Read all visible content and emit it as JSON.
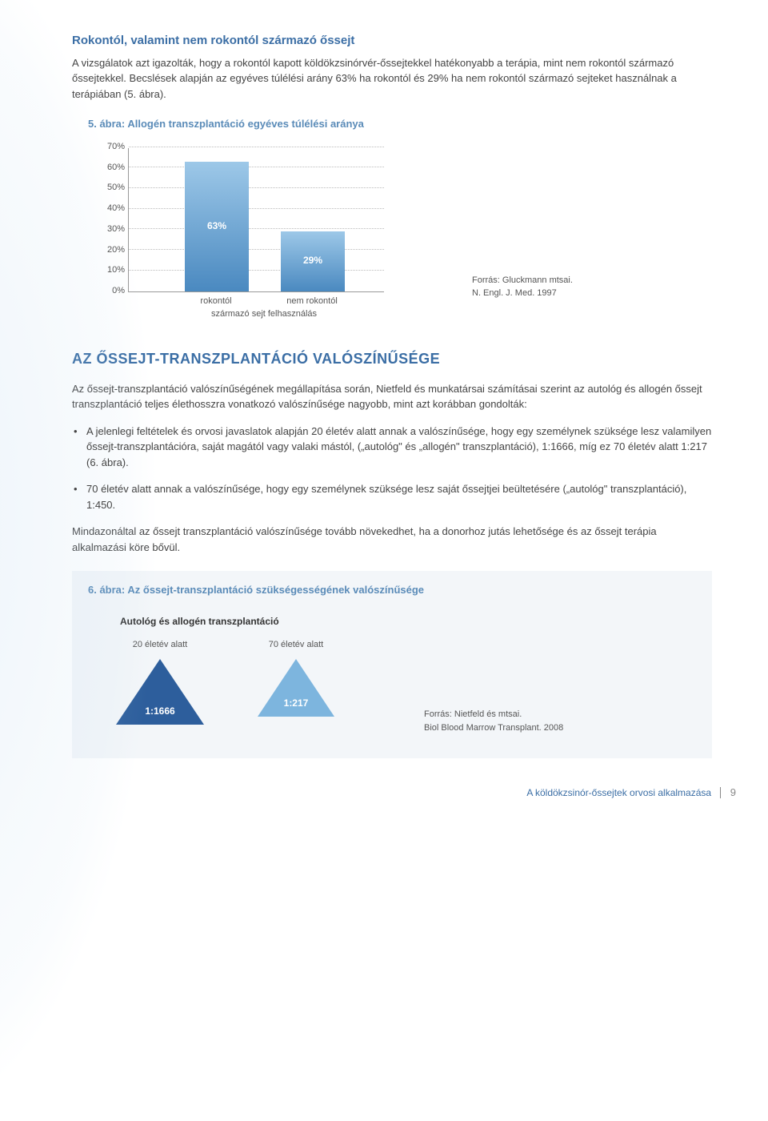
{
  "section1": {
    "title": "Rokontól, valamint nem rokontól származó őssejt",
    "body": "A vizsgálatok azt igazolták, hogy a rokontól kapott köldökzsinórvér-őssejtekkel hatékonyabb a terápia, mint nem rokontól származó őssejtekkel. Becslések alapján az egyéves túlélési arány 63% ha rokontól és 29% ha nem rokontól származó sejteket használnak a terápiában (5. ábra)."
  },
  "fig5": {
    "caption": "5. ábra: Allogén transzplantáció egyéves túlélési aránya",
    "ymax": 70,
    "ytick_step": 10,
    "yticks": [
      "70%",
      "60%",
      "50%",
      "40%",
      "30%",
      "20%",
      "10%",
      "0%"
    ],
    "categories": [
      "rokontól",
      "nem rokontól"
    ],
    "sublabel": "származó sejt felhasználás",
    "values": [
      63,
      29
    ],
    "value_labels": [
      "63%",
      "29%"
    ],
    "bar_gradient_top": "#9dc8e8",
    "bar_gradient_bottom": "#4a89c0",
    "grid_color": "#bbbbbb",
    "axis_color": "#999999",
    "source_line1": "Forrás: Gluckmann mtsai.",
    "source_line2": "N. Engl. J. Med. 1997"
  },
  "section2": {
    "title": "AZ ŐSSEJT-TRANSZPLANTÁCIÓ VALÓSZÍNŰSÉGE",
    "intro": "Az őssejt-transzplantáció valószínűségének megállapítása során, Nietfeld és munkatársai számításai szerint az autológ és allogén őssejt transzplantáció teljes élethosszra vonatkozó valószínűsége nagyobb, mint azt korábban gondolták:",
    "bullets": [
      "A jelenlegi feltételek és orvosi javaslatok alapján 20 életév alatt annak a valószínűsége, hogy egy személynek szüksége lesz valamilyen őssejt-transzplantációra, saját magától vagy valaki mástól, („autológ\" és „allogén\" transzplantáció), 1:1666, míg ez 70 életév alatt 1:217 (6. ábra).",
      "70 életév alatt annak a valószínűsége, hogy egy személynek szüksége lesz saját őssejtjei beültetésére („autológ\" transzplantáció), 1:450."
    ],
    "closing": "Mindazonáltal az őssejt transzplantáció valószínűsége tovább növekedhet, ha a donorhoz jutás lehetősége és az őssejt terápia alkalmazási köre bővül."
  },
  "fig6": {
    "caption": "6. ábra: Az őssejt-transzplantáció szükségességének valószínűsége",
    "header": "Autológ és allogén transzplantáció",
    "items": [
      {
        "label": "20 életév alatt",
        "value": "1:1666",
        "color": "#2d5e9c",
        "size": 55
      },
      {
        "label": "70 életév alatt",
        "value": "1:217",
        "color": "#7db5de",
        "size": 48
      }
    ],
    "box_bg": "#f3f6f9",
    "source_line1": "Forrás: Nietfeld és mtsai.",
    "source_line2": "Biol Blood Marrow Transplant. 2008"
  },
  "footer": {
    "text": "A köldökzsinór-őssejtek orvosi alkalmazása",
    "page": "9"
  },
  "colors": {
    "heading": "#3b6ea5",
    "body": "#444444"
  }
}
